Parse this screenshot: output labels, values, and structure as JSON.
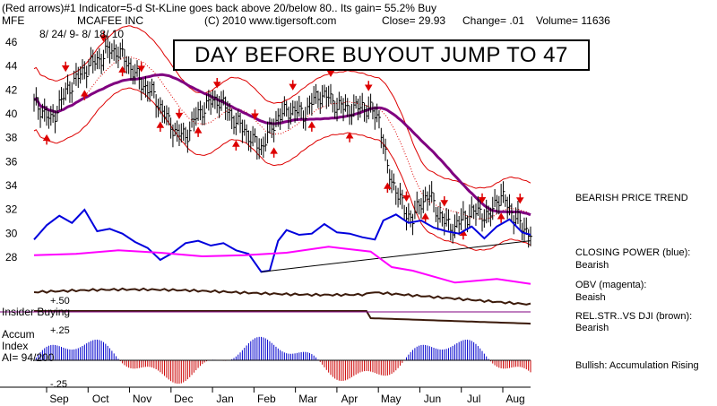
{
  "header": {
    "line1": "(Red arrows)#1 Indicator=5-d St-KLine goes back above 20/below 80.. Its gain= 55.2% Buy",
    "ticker": "MFE",
    "company": "MCAFEE INC",
    "date_range": "8/ 24/ 9- 8/ 18/ 10",
    "copyright": "(C) 2010 www.tigersoft.com",
    "close": "Close=  29.93",
    "change": "Change= .01",
    "volume": "Volume= 11636"
  },
  "headline": "DAY BEFORE BUYOUT JUMP TO 47",
  "side_labels": {
    "trend": "BEARISH PRICE TREND",
    "closing_power_1": "CLOSING POWER (blue):",
    "closing_power_2": "Bearish",
    "obv_1": "OBV (magenta):",
    "obv_2": "Beaish",
    "relstr_1": "REL.STR..VS DJI (brown):",
    "relstr_2": "Bearish",
    "accum_text": "Bullish: Accumulation Rising"
  },
  "lower_labels": {
    "insider": "Insider Buying",
    "plus50": "+.50",
    "plus25": "+.25",
    "accum1": "Accum",
    "accum2": "Index",
    "ai": "AI= 94/200",
    "minus25": "-.25"
  },
  "colors": {
    "price": "#000000",
    "bands": "#dd0000",
    "ma": "#800080",
    "closing_power": "#0000dd",
    "obv": "#ff00ff",
    "relstr": "#3b1a0a",
    "accum_pos": "#0000cc",
    "accum_neg": "#cc0000",
    "insider_line": "#800080"
  },
  "chart_data": {
    "type": "line",
    "title": "MCAFEE INC",
    "x_tick_labels": [
      "Sep",
      "Oct",
      "Nov",
      "Dec",
      "Jan",
      "Feb",
      "Mar",
      "Apr",
      "May",
      "Jun",
      "Jul",
      "Aug"
    ],
    "y_tick_labels": [
      "46",
      "44",
      "42",
      "40",
      "38",
      "36",
      "34",
      "32",
      "30",
      "28"
    ],
    "ylim": [
      27,
      47
    ],
    "series": [
      {
        "name": "Price",
        "points": [
          [
            0,
            40.8
          ],
          [
            4,
            40.2
          ],
          [
            8,
            39.3
          ],
          [
            12,
            40.7
          ],
          [
            16,
            42.0
          ],
          [
            20,
            42.8
          ],
          [
            24,
            43.6
          ],
          [
            28,
            44.2
          ],
          [
            32,
            44.6
          ],
          [
            36,
            45.3
          ],
          [
            40,
            45.1
          ],
          [
            44,
            44.3
          ],
          [
            48,
            43.2
          ],
          [
            52,
            42.3
          ],
          [
            56,
            41.7
          ],
          [
            60,
            40.5
          ],
          [
            64,
            39.2
          ],
          [
            68,
            38.3
          ],
          [
            72,
            38.0
          ],
          [
            76,
            39.4
          ],
          [
            80,
            40.3
          ],
          [
            84,
            40.9
          ],
          [
            88,
            41.1
          ],
          [
            92,
            40.2
          ],
          [
            96,
            39.2
          ],
          [
            100,
            38.6
          ],
          [
            104,
            37.6
          ],
          [
            108,
            37.1
          ],
          [
            112,
            38.4
          ],
          [
            116,
            39.7
          ],
          [
            120,
            40.1
          ],
          [
            124,
            40.3
          ],
          [
            128,
            39.8
          ],
          [
            132,
            40.9
          ],
          [
            136,
            41.5
          ],
          [
            140,
            41.3
          ],
          [
            144,
            40.6
          ],
          [
            148,
            40.4
          ],
          [
            152,
            40.3
          ],
          [
            156,
            40.6
          ],
          [
            160,
            40.2
          ],
          [
            164,
            39.6
          ],
          [
            168,
            35.2
          ],
          [
            172,
            33.6
          ],
          [
            176,
            31.8
          ],
          [
            180,
            31.1
          ],
          [
            184,
            32.6
          ],
          [
            188,
            33.1
          ],
          [
            192,
            31.6
          ],
          [
            196,
            30.7
          ],
          [
            200,
            30.4
          ],
          [
            204,
            31.2
          ],
          [
            208,
            31.6
          ],
          [
            212,
            31.8
          ],
          [
            216,
            31.1
          ],
          [
            220,
            32.9
          ],
          [
            224,
            32.7
          ],
          [
            228,
            31.4
          ],
          [
            232,
            30.5
          ],
          [
            236,
            29.93
          ]
        ]
      },
      {
        "name": "Closing Power",
        "points": [
          [
            0,
            29.4
          ],
          [
            6,
            30.6
          ],
          [
            12,
            31.4
          ],
          [
            18,
            30.8
          ],
          [
            24,
            31.9
          ],
          [
            30,
            30.1
          ],
          [
            36,
            30.3
          ],
          [
            42,
            29.9
          ],
          [
            48,
            29.2
          ],
          [
            54,
            28.7
          ],
          [
            60,
            27.7
          ],
          [
            66,
            28.3
          ],
          [
            72,
            29.1
          ],
          [
            78,
            29.3
          ],
          [
            84,
            28.9
          ],
          [
            90,
            29.1
          ],
          [
            96,
            28.5
          ],
          [
            102,
            28.2
          ],
          [
            108,
            26.7
          ],
          [
            112,
            26.8
          ],
          [
            116,
            29.3
          ],
          [
            120,
            30.2
          ],
          [
            126,
            29.8
          ],
          [
            132,
            29.9
          ],
          [
            138,
            30.7
          ],
          [
            144,
            30.0
          ],
          [
            150,
            29.9
          ],
          [
            156,
            29.6
          ],
          [
            162,
            29.4
          ],
          [
            166,
            31.0
          ],
          [
            172,
            31.5
          ],
          [
            178,
            30.8
          ],
          [
            184,
            31.0
          ],
          [
            190,
            30.4
          ],
          [
            196,
            30.1
          ],
          [
            202,
            29.9
          ],
          [
            208,
            30.5
          ],
          [
            214,
            29.5
          ],
          [
            220,
            30.5
          ],
          [
            226,
            31.1
          ],
          [
            232,
            30.0
          ],
          [
            236,
            29.8
          ]
        ]
      },
      {
        "name": "OBV",
        "points": [
          [
            0,
            28.1
          ],
          [
            20,
            28.2
          ],
          [
            40,
            28.5
          ],
          [
            60,
            28.3
          ],
          [
            80,
            28.0
          ],
          [
            100,
            28.1
          ],
          [
            120,
            28.3
          ],
          [
            140,
            28.8
          ],
          [
            160,
            28.4
          ],
          [
            170,
            27.1
          ],
          [
            180,
            26.8
          ],
          [
            200,
            25.8
          ],
          [
            220,
            26.1
          ],
          [
            236,
            25.7
          ]
        ]
      }
    ],
    "lower_panels": {
      "insider_line_label": "+.50",
      "accum_index_range": [
        -0.25,
        0.25
      ]
    }
  }
}
